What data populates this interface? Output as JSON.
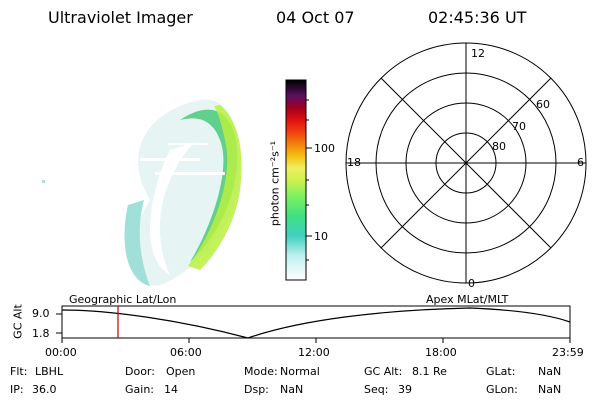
{
  "header": {
    "instrument": "Ultraviolet Imager",
    "date": "04 Oct 07",
    "time": "02:45:36 UT"
  },
  "colorbar": {
    "label": "photon cm⁻²s⁻¹",
    "ticks": [
      "100",
      "10"
    ],
    "colors": [
      "#000000",
      "#3a0a3a",
      "#5a1060",
      "#8a0020",
      "#c00010",
      "#e01010",
      "#f04010",
      "#f58010",
      "#f5c010",
      "#f0f060",
      "#d0f050",
      "#80f060",
      "#40e080",
      "#40d0c0",
      "#c0f0f0",
      "#ffffff"
    ]
  },
  "polar": {
    "mlt_labels": [
      "12",
      "18",
      "6",
      "0"
    ],
    "lat_labels": [
      "60",
      "70",
      "80"
    ]
  },
  "timeline": {
    "y_axis_label": "GC Alt",
    "y_ticks": [
      "9.0",
      "1.8"
    ],
    "left_caption": "Geographic Lat/Lon",
    "right_caption": "Apex MLat/MLT",
    "x_ticks": [
      "00:00",
      "06:00",
      "12:00",
      "18:00",
      "23:59"
    ],
    "marker_color": "#c00000"
  },
  "info": {
    "rows": [
      [
        {
          "key": "Flt:",
          "val": "LBHL"
        },
        {
          "key": "Door:",
          "val": "Open"
        },
        {
          "key": "Mode:",
          "val": "Normal"
        },
        {
          "key": "GC Alt:",
          "val": "8.1 Re"
        },
        {
          "key": "GLat:",
          "val": "NaN"
        }
      ],
      [
        {
          "key": "IP:",
          "val": "36.0"
        },
        {
          "key": "Gain:",
          "val": "14"
        },
        {
          "key": "Dsp:",
          "val": "NaN"
        },
        {
          "key": "Seq:",
          "val": "39"
        },
        {
          "key": "GLon:",
          "val": "NaN"
        }
      ]
    ]
  }
}
